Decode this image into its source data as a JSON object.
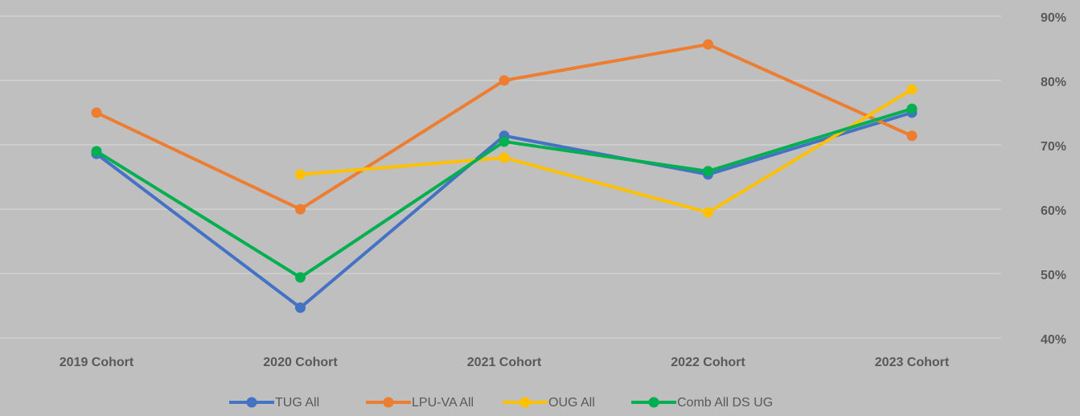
{
  "chart_data": {
    "type": "line",
    "categories": [
      "2019 Cohort",
      "2020 Cohort",
      "2021 Cohort",
      "2022 Cohort",
      "2023 Cohort"
    ],
    "series": [
      {
        "name": "TUG All",
        "color": "#4472c4",
        "values": [
          68.6,
          44.7,
          71.4,
          65.4,
          75
        ]
      },
      {
        "name": "LPU-VA All",
        "color": "#ed7d31",
        "values": [
          75,
          60,
          80,
          85.6,
          71.4
        ]
      },
      {
        "name": "OUG All",
        "color": "#ffc000",
        "values": [
          null,
          65.4,
          68,
          59.5,
          78.6
        ]
      },
      {
        "name": "Comb All DS UG",
        "color": "#00b050",
        "values": [
          69,
          49.4,
          70.5,
          65.9,
          75.6
        ]
      }
    ],
    "ylim": [
      40,
      90
    ],
    "yticks": [
      {
        "value": 40,
        "label": "40%"
      },
      {
        "value": 50,
        "label": "50%"
      },
      {
        "value": 60,
        "label": "60%"
      },
      {
        "value": 70,
        "label": "70%"
      },
      {
        "value": 80,
        "label": "80%"
      },
      {
        "value": 90,
        "label": "90%"
      }
    ],
    "grid": true,
    "legend": "bottom"
  }
}
